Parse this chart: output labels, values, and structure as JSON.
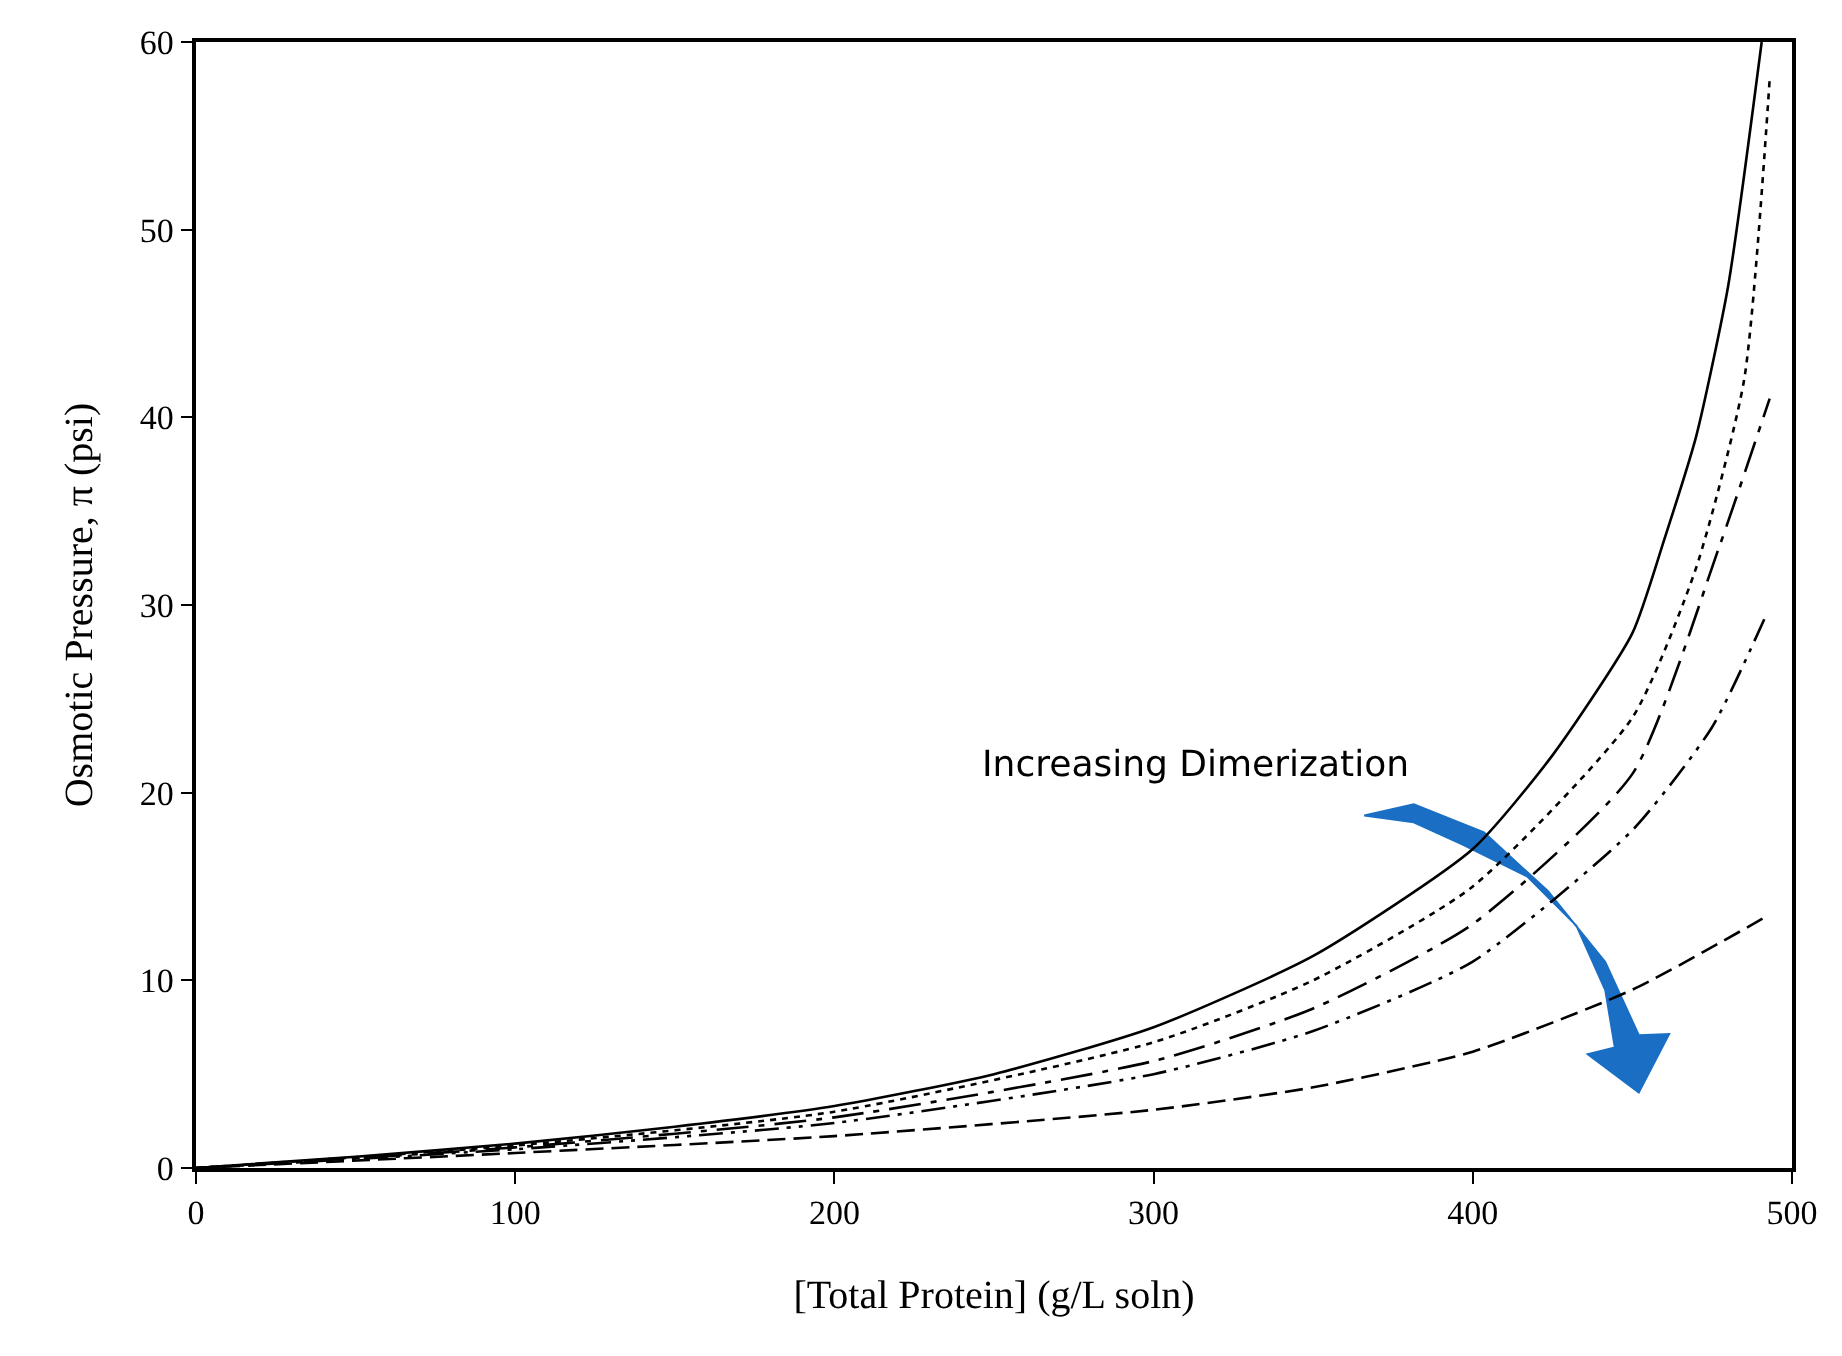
{
  "chart_data": {
    "type": "line",
    "xlabel": "[Total Protein] (g/L soln)",
    "ylabel": "Osmotic Pressure, π (psi)",
    "xlim": [
      0,
      500
    ],
    "xticks": [
      0,
      100,
      200,
      300,
      400,
      500
    ],
    "ylim": [
      0,
      60
    ],
    "yticks": [
      0,
      10,
      20,
      30,
      40,
      50,
      60
    ],
    "grid": false,
    "legend": false,
    "marker": "none",
    "annotations": [
      "Increasing Dimerization"
    ],
    "series": [
      {
        "color": "#000000",
        "line_style": "solid",
        "x": [
          0,
          50,
          100,
          150,
          200,
          250,
          300,
          350,
          400,
          425,
          450,
          460,
          470,
          480,
          490.5
        ],
        "values": [
          0,
          0.6,
          1.3,
          2.2,
          3.3,
          5.0,
          7.5,
          11.3,
          17,
          22,
          28.5,
          33.5,
          39,
          47,
          60
        ]
      },
      {
        "color": "#000000",
        "line_style": "dotted",
        "x": [
          0,
          100,
          200,
          300,
          350,
          400,
          450,
          470,
          485,
          493
        ],
        "values": [
          0,
          1.2,
          3.0,
          6.7,
          10,
          15,
          24,
          32,
          42,
          58
        ]
      },
      {
        "color": "#000000",
        "line_style": "longdashdot",
        "x": [
          0,
          100,
          200,
          300,
          350,
          400,
          450,
          477,
          493
        ],
        "values": [
          0,
          1.1,
          2.7,
          5.7,
          8.5,
          13,
          21,
          33,
          41
        ]
      },
      {
        "color": "#000000",
        "line_style": "dashdotdot",
        "x": [
          0,
          100,
          200,
          300,
          350,
          400,
          450,
          475,
          492
        ],
        "values": [
          0,
          1.0,
          2.4,
          5.0,
          7.3,
          11,
          18,
          23.5,
          29.5
        ]
      },
      {
        "color": "#000000",
        "line_style": "dashed",
        "x": [
          0,
          100,
          200,
          300,
          350,
          400,
          450,
          493
        ],
        "values": [
          0,
          0.8,
          1.7,
          3.1,
          4.3,
          6.2,
          9.5,
          13.5
        ]
      }
    ]
  }
}
